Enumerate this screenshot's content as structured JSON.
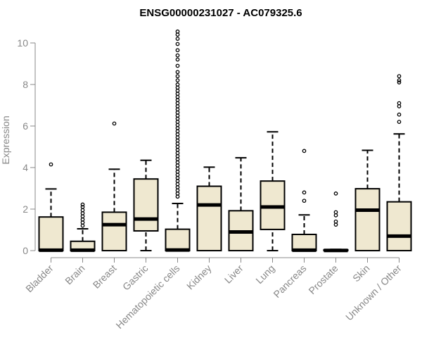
{
  "chart_data": {
    "type": "boxplot",
    "title": "ENSG00000231027 - AC079325.6",
    "xlabel": "",
    "ylabel": "Expression",
    "ylim": [
      0,
      10.6
    ],
    "yticks": [
      0,
      2,
      4,
      6,
      8,
      10
    ],
    "grid": false,
    "box_color": "#efe8d0",
    "categories": [
      "Bladder",
      "Brain",
      "Breast",
      "Gastric",
      "Hematopoietic cells",
      "Kidney",
      "Liver",
      "Lung",
      "Pancreas",
      "Prostate",
      "Skin",
      "Unknown / Other"
    ],
    "boxes": [
      {
        "min": 0,
        "q1": 0,
        "median": 0.02,
        "q3": 1.62,
        "max": 2.97,
        "outliers": [
          4.15
        ]
      },
      {
        "min": 0,
        "q1": 0,
        "median": 0.02,
        "q3": 0.45,
        "max": 1.05,
        "outliers": [
          1.2,
          1.35,
          1.5,
          1.65,
          1.8,
          1.95,
          2.1,
          2.22
        ]
      },
      {
        "min": 0,
        "q1": 0,
        "median": 1.25,
        "q3": 1.85,
        "max": 3.92,
        "outliers": [
          6.12
        ]
      },
      {
        "min": 0,
        "q1": 0.95,
        "median": 1.52,
        "q3": 3.45,
        "max": 4.35,
        "outliers": []
      },
      {
        "min": 0,
        "q1": 0,
        "median": 0.03,
        "q3": 1.03,
        "max": 2.27,
        "outliers": [
          2.6,
          2.75,
          2.9,
          3.05,
          3.2,
          3.35,
          3.5,
          3.65,
          3.8,
          3.95,
          4.1,
          4.25,
          4.4,
          4.55,
          4.7,
          4.85,
          5.0,
          5.15,
          5.3,
          5.45,
          5.6,
          5.75,
          5.9,
          6.05,
          6.2,
          6.35,
          6.5,
          6.65,
          6.8,
          6.95,
          7.1,
          7.25,
          7.4,
          7.55,
          7.7,
          7.85,
          8.0,
          8.2,
          8.4,
          8.6,
          8.9,
          9.2,
          9.4,
          9.65,
          9.95,
          10.2,
          10.4,
          10.55
        ]
      },
      {
        "min": 0,
        "q1": 0,
        "median": 2.2,
        "q3": 3.1,
        "max": 4.02,
        "outliers": []
      },
      {
        "min": 0,
        "q1": 0,
        "median": 0.9,
        "q3": 1.92,
        "max": 4.47,
        "outliers": []
      },
      {
        "min": 0,
        "q1": 1.02,
        "median": 2.1,
        "q3": 3.35,
        "max": 5.72,
        "outliers": []
      },
      {
        "min": 0,
        "q1": 0,
        "median": 0.02,
        "q3": 0.78,
        "max": 1.72,
        "outliers": [
          2.4,
          2.8,
          4.8
        ]
      },
      {
        "min": 0,
        "q1": 0,
        "median": 0.01,
        "q3": 0.04,
        "max": 0.06,
        "outliers": [
          1.25,
          1.4,
          1.7,
          1.85,
          2.75
        ]
      },
      {
        "min": 0,
        "q1": 0,
        "median": 1.95,
        "q3": 2.98,
        "max": 4.83,
        "outliers": []
      },
      {
        "min": 0,
        "q1": 0,
        "median": 0.7,
        "q3": 2.35,
        "max": 5.62,
        "outliers": [
          6.2,
          6.55,
          6.95,
          7.1,
          8.1,
          8.2,
          8.4
        ]
      }
    ]
  }
}
